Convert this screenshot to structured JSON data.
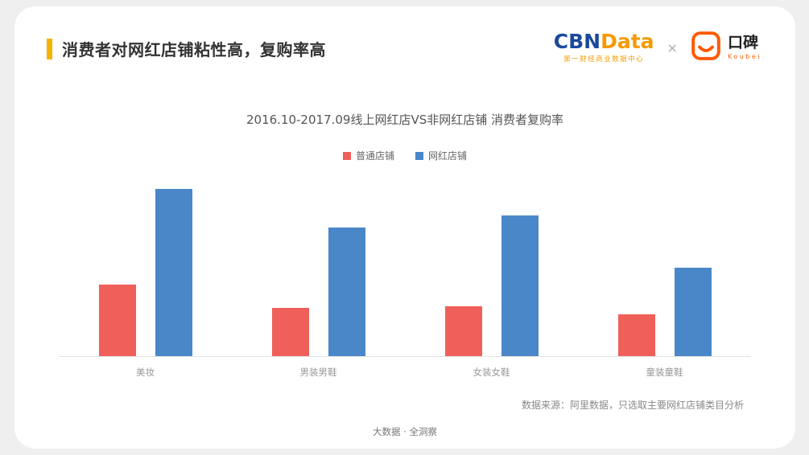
{
  "page": {
    "title": "消费者对网红店铺粘性高，复购率高",
    "source_note": "数据来源：阿里数据，只选取主要网红店铺类目分析",
    "footer": "大数据 · 全洞察"
  },
  "brand": {
    "cbn": "CBN",
    "data": "Data",
    "cbn_subtitle": "第一财经商业数据中心",
    "separator": "×",
    "koubei_name": "口碑",
    "koubei_sub": "Koubei"
  },
  "colors": {
    "accent_yellow": "#F5B300",
    "bar_red": "#F0605A",
    "bar_blue": "#4A87C8"
  },
  "chart_data": {
    "type": "bar",
    "title": "2016.10-2017.09线上网红店VS非网红店铺 消费者复购率",
    "categories": [
      "美妆",
      "男装男鞋",
      "女装女鞋",
      "童装童鞋"
    ],
    "series": [
      {
        "name": "普通店铺",
        "color": "#F0605A",
        "values": [
          43,
          29,
          30,
          25
        ]
      },
      {
        "name": "网红店铺",
        "color": "#4A87C8",
        "values": [
          100,
          77,
          84,
          53
        ]
      }
    ],
    "ylim": [
      0,
      100
    ],
    "xlabel": "",
    "ylabel": "",
    "grid": false,
    "legend_position": "top"
  }
}
